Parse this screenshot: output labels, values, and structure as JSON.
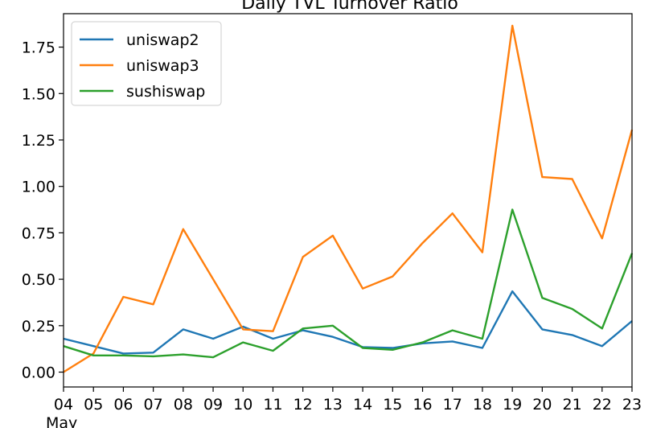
{
  "chart_data": {
    "type": "line",
    "title": "Daily TVL Turnover Ratio",
    "xlabel": "",
    "ylabel": "",
    "x": [
      "04",
      "05",
      "06",
      "07",
      "08",
      "09",
      "10",
      "11",
      "12",
      "13",
      "14",
      "15",
      "16",
      "17",
      "18",
      "19",
      "20",
      "21",
      "22",
      "23"
    ],
    "x_sublabel": "May",
    "ylim": [
      -0.08,
      1.93
    ],
    "yticks": [
      0.0,
      0.25,
      0.5,
      0.75,
      1.0,
      1.25,
      1.5,
      1.75
    ],
    "ytick_labels": [
      "0.00",
      "0.25",
      "0.50",
      "0.75",
      "1.00",
      "1.25",
      "1.50",
      "1.75"
    ],
    "grid": false,
    "legend_position": "top-left",
    "series": [
      {
        "name": "uniswap2",
        "color": "#1f77b4",
        "values": [
          0.18,
          0.14,
          0.1,
          0.105,
          0.23,
          0.18,
          0.245,
          0.18,
          0.225,
          0.19,
          0.135,
          0.13,
          0.155,
          0.165,
          0.13,
          0.435,
          0.23,
          0.2,
          0.14,
          0.275
        ]
      },
      {
        "name": "uniswap3",
        "color": "#ff7f0e",
        "values": [
          0.0,
          0.1,
          0.405,
          0.365,
          0.77,
          0.5,
          0.23,
          0.22,
          0.62,
          0.735,
          0.45,
          0.515,
          0.695,
          0.855,
          0.645,
          1.865,
          1.05,
          1.04,
          0.72,
          1.305
        ]
      },
      {
        "name": "sushiswap",
        "color": "#2ca02c",
        "values": [
          0.14,
          0.09,
          0.09,
          0.085,
          0.095,
          0.08,
          0.16,
          0.115,
          0.235,
          0.25,
          0.13,
          0.12,
          0.16,
          0.225,
          0.18,
          0.875,
          0.4,
          0.34,
          0.235,
          0.64
        ]
      }
    ]
  }
}
